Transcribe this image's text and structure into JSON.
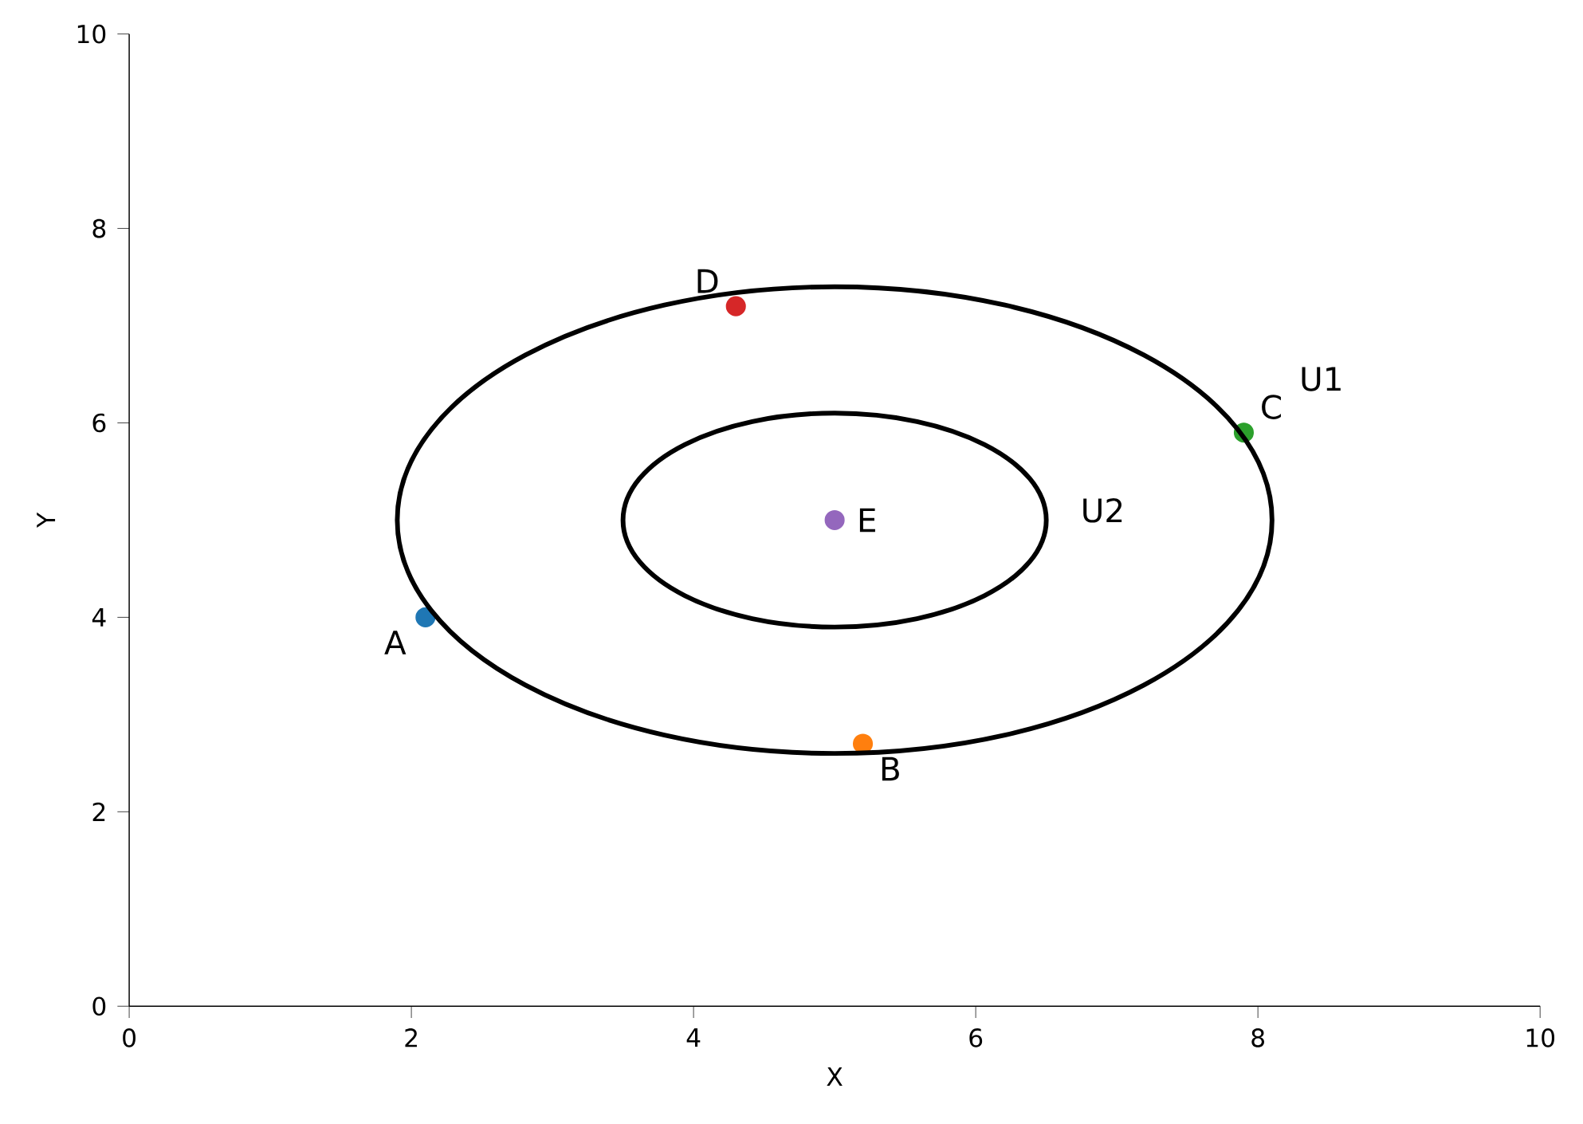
{
  "chart_data": {
    "type": "scatter",
    "xlabel": "X",
    "ylabel": "Y",
    "xlim": [
      0,
      10
    ],
    "ylim": [
      0,
      10
    ],
    "xticks": [
      0,
      2,
      4,
      6,
      8,
      10
    ],
    "yticks": [
      0,
      2,
      4,
      6,
      8,
      10
    ],
    "grid": false,
    "legend": false,
    "marker": "circle",
    "annotations": [
      "U1",
      "U2"
    ],
    "series": [
      {
        "name": "A",
        "color": "#1f77b4",
        "x": [
          2.1
        ],
        "values": [
          4.0
        ]
      },
      {
        "name": "B",
        "color": "#ff7f0e",
        "x": [
          5.2
        ],
        "values": [
          2.7
        ]
      },
      {
        "name": "C",
        "color": "#2ca02c",
        "x": [
          7.9
        ],
        "values": [
          5.9
        ]
      },
      {
        "name": "D",
        "color": "#d62728",
        "x": [
          4.3
        ],
        "values": [
          7.2
        ]
      },
      {
        "name": "E",
        "color": "#9467bd",
        "x": [
          5.0
        ],
        "values": [
          5.0
        ]
      }
    ]
  }
}
